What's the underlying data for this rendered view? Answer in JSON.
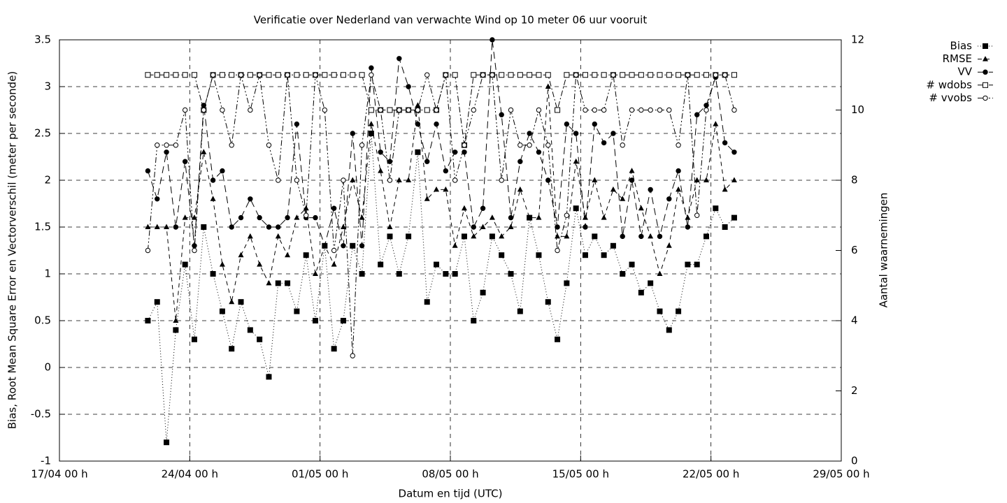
{
  "chart_data": {
    "type": "line",
    "title": "Verificatie over Nederland van verwachte Wind op 10 meter 06 uur vooruit",
    "xlabel": "Datum en tijd (UTC)",
    "ylabel": "Bias, Root Mean Square Error en Vectorverschil (meter per seconde)",
    "y2label": "Aantal waarnemingen",
    "xlim": [
      0,
      42
    ],
    "xticks": [
      {
        "value": 0,
        "label": "17/04 00 h"
      },
      {
        "value": 7,
        "label": "24/04 00 h"
      },
      {
        "value": 14,
        "label": "01/05 00 h"
      },
      {
        "value": 21,
        "label": "08/05 00 h"
      },
      {
        "value": 28,
        "label": "15/05 00 h"
      },
      {
        "value": 35,
        "label": "22/05 00 h"
      },
      {
        "value": 42,
        "label": "29/05 00 h"
      }
    ],
    "ylim": [
      -1,
      3.5
    ],
    "yticks": [
      -1,
      -0.5,
      0,
      0.5,
      1,
      1.5,
      2,
      2.5,
      3,
      3.5
    ],
    "y2lim": [
      0,
      12
    ],
    "y2ticks": [
      0,
      2,
      4,
      6,
      8,
      10,
      12
    ],
    "grid": true,
    "legend": "top-right",
    "x": [
      4.75,
      5.25,
      5.75,
      6.25,
      6.75,
      7.25,
      7.75,
      8.25,
      8.75,
      9.25,
      9.75,
      10.25,
      10.75,
      11.25,
      11.75,
      12.25,
      12.75,
      13.25,
      13.75,
      14.25,
      14.75,
      15.25,
      15.75,
      16.25,
      16.75,
      17.25,
      17.75,
      18.25,
      18.75,
      19.25,
      19.75,
      20.25,
      20.75,
      21.25,
      21.75,
      22.25,
      22.75,
      23.25,
      23.75,
      24.25,
      24.75,
      25.25,
      25.75,
      26.25,
      26.75,
      27.25,
      27.75,
      28.25,
      28.75,
      29.25,
      29.75,
      30.25,
      30.75,
      31.25,
      31.75,
      32.25,
      32.75,
      33.25,
      33.75,
      34.25,
      34.75,
      35.25,
      35.75,
      36.25
    ],
    "series": [
      {
        "name": "Bias",
        "color": "#000000",
        "marker": "square",
        "dash": "1,3",
        "values": [
          0.5,
          0.7,
          -0.8,
          0.4,
          1.1,
          0.3,
          1.5,
          1.0,
          0.6,
          0.2,
          0.7,
          0.4,
          0.3,
          -0.1,
          0.9,
          0.9,
          0.6,
          1.2,
          0.5,
          1.3,
          0.2,
          0.5,
          1.3,
          1.0,
          2.5,
          1.1,
          1.4,
          1.0,
          1.4,
          2.3,
          0.7,
          1.1,
          1.0,
          1.0,
          1.4,
          0.5,
          0.8,
          1.4,
          1.2,
          1.0,
          0.6,
          1.6,
          1.2,
          0.7,
          0.3,
          0.9,
          1.7,
          1.2,
          1.4,
          1.2,
          1.3,
          1.0,
          1.1,
          0.8,
          0.9,
          0.6,
          0.4,
          0.6,
          1.1,
          1.1,
          1.4,
          1.7,
          1.5,
          1.6
        ]
      },
      {
        "name": "RMSE",
        "color": "#000000",
        "marker": "triangle",
        "dash": "6,5",
        "values": [
          1.5,
          1.5,
          1.5,
          0.5,
          1.6,
          1.6,
          2.3,
          1.8,
          1.1,
          0.7,
          1.2,
          1.4,
          1.1,
          0.9,
          1.4,
          1.2,
          1.6,
          1.7,
          1.0,
          1.3,
          1.1,
          1.5,
          2.0,
          1.6,
          2.6,
          2.1,
          1.5,
          2.0,
          2.0,
          2.8,
          1.8,
          1.9,
          1.9,
          1.3,
          1.7,
          1.4,
          1.5,
          1.6,
          1.4,
          1.5,
          1.9,
          1.6,
          1.6,
          3.0,
          1.4,
          1.4,
          2.2,
          1.6,
          2.0,
          1.6,
          1.9,
          1.8,
          2.1,
          1.7,
          1.4,
          1.0,
          1.3,
          1.9,
          1.6,
          2.0,
          2.0,
          2.6,
          1.9,
          2.0
        ]
      },
      {
        "name": "VV",
        "color": "#000000",
        "marker": "circle",
        "dash": "10,6",
        "values": [
          2.1,
          1.8,
          2.3,
          1.5,
          2.2,
          1.3,
          2.8,
          2.0,
          2.1,
          1.5,
          1.6,
          1.8,
          1.6,
          1.5,
          1.5,
          1.6,
          2.6,
          1.6,
          1.6,
          1.3,
          1.7,
          1.3,
          2.5,
          1.3,
          3.2,
          2.3,
          2.2,
          3.3,
          3.0,
          2.6,
          2.2,
          2.6,
          2.1,
          2.3,
          2.3,
          1.5,
          1.7,
          3.5,
          2.7,
          1.6,
          2.2,
          2.5,
          2.3,
          2.0,
          1.5,
          2.6,
          2.5,
          1.5,
          2.6,
          2.4,
          2.5,
          1.4,
          2.0,
          1.4,
          1.9,
          1.4,
          1.8,
          2.1,
          1.5,
          2.7,
          2.8,
          3.1,
          2.4,
          2.3
        ]
      },
      {
        "name": "# wdobs",
        "color": "#000000",
        "marker": "open-square",
        "dash": "8,3,2,3",
        "axis": "y2",
        "values": [
          11,
          11,
          11,
          11,
          11,
          11,
          10,
          11,
          11,
          11,
          11,
          11,
          11,
          11,
          11,
          11,
          11,
          11,
          11,
          11,
          11,
          11,
          11,
          11,
          10,
          10,
          10,
          10,
          10,
          10,
          10,
          10,
          11,
          11,
          9,
          11,
          11,
          11,
          11,
          11,
          11,
          11,
          11,
          11,
          10,
          11,
          11,
          11,
          11,
          11,
          11,
          11,
          11,
          11,
          11,
          11,
          11,
          11,
          11,
          11,
          11,
          11,
          11,
          11
        ]
      },
      {
        "name": "# vvobs",
        "color": "#000000",
        "marker": "open-circle",
        "dash": "8,3,2,3,2,3",
        "axis": "y2",
        "values": [
          6,
          9,
          9,
          9,
          10,
          6,
          10,
          11,
          10,
          9,
          11,
          10,
          11,
          9,
          8,
          11,
          8,
          7,
          11,
          10,
          6,
          8,
          3,
          9,
          11,
          10,
          8,
          10,
          10,
          10,
          11,
          10,
          11,
          8,
          9,
          10,
          11,
          11,
          8,
          10,
          9,
          9,
          10,
          9,
          6,
          7,
          11,
          10,
          10,
          10,
          11,
          9,
          10,
          10,
          10,
          10,
          10,
          9,
          11,
          7,
          10,
          11,
          11,
          10
        ]
      }
    ]
  }
}
